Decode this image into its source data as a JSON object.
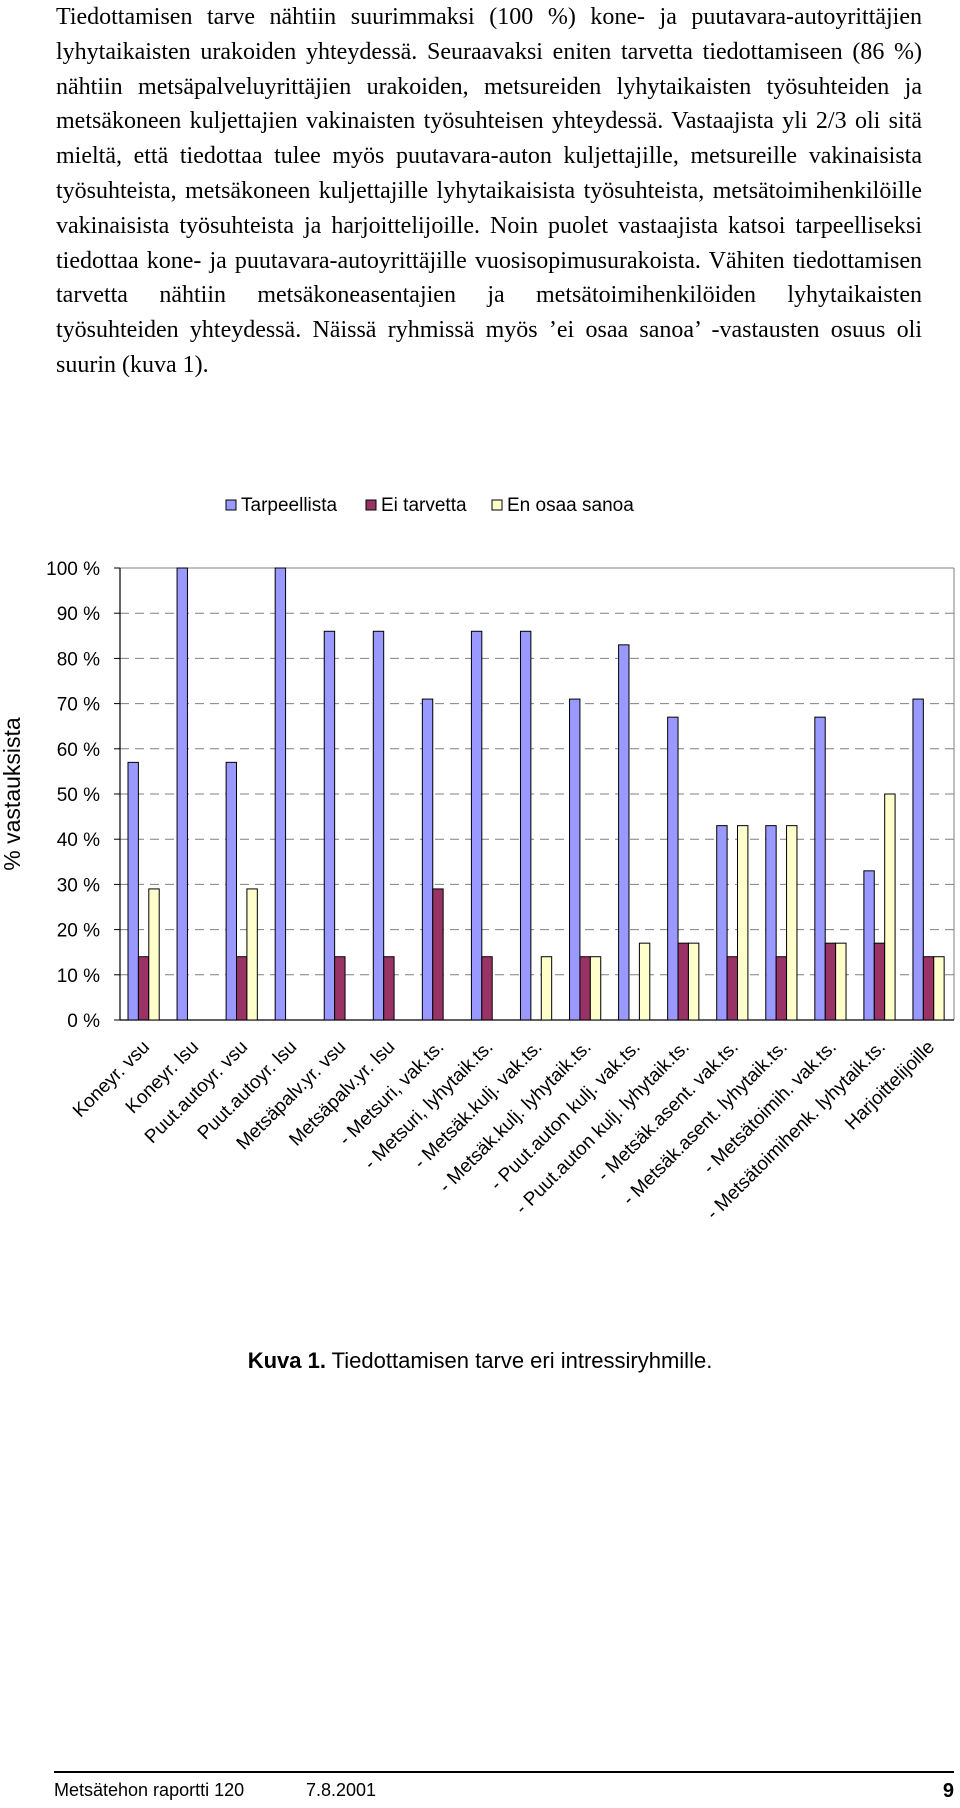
{
  "body_text": "Tiedottamisen tarve nähtiin suurimmaksi (100 %) kone- ja puutavara-autoyrittäjien lyhytaikaisten urakoiden yhteydessä. Seuraavaksi eniten tarvetta tiedottamiseen (86 %) nähtiin metsäpalveluyrittäjien urakoiden, metsureiden lyhytaikaisten työsuhteiden ja metsäkoneen kuljettajien vakinaisten työsuhteisen yhteydessä. Vastaajista yli 2/3 oli sitä mieltä, että tiedottaa tulee myös puutavara-auton kuljettajille, metsureille vakinaisista työsuhteista, metsäkoneen kuljettajille lyhytaikaisista työsuhteista, metsätoimihenkilöille vakinaisista työsuhteista ja harjoittelijoille. Noin puolet vastaajista katsoi tarpeelliseksi tiedottaa kone- ja puutavara-autoyrittäjille vuosisopimusurakoista. Vähiten tiedottamisen tarvetta nähtiin metsäkoneasentajien ja metsätoimihenkilöiden lyhytaikaisten työsuhteiden yhteydessä. Näissä ryhmissä myös ’ei osaa sanoa’ -vastausten osuus oli suurin (kuva 1).",
  "chart_data": {
    "type": "bar",
    "ylabel": "% vastauksista",
    "ylim": [
      0,
      100
    ],
    "yticks": [
      "0 %",
      "10 %",
      "20 %",
      "30 %",
      "40 %",
      "50 %",
      "60 %",
      "70 %",
      "80 %",
      "90 %",
      "100 %"
    ],
    "grid": true,
    "legend_position": "top",
    "categories": [
      "Koneyr. vsu",
      "Koneyr. lsu",
      "Puut.autoyr. vsu",
      "Puut.autoyr. lsu",
      "Metsäpalv.yr. vsu",
      "Metsäpalv.yr. lsu",
      "- Metsuri, vak.ts.",
      "- Metsuri, lyhytaik.ts.",
      "- Metsäk.kulj. vak.ts.",
      "- Metsäk.kulj. lyhytaik.ts.",
      "- Puut.auton kulj. vak.ts.",
      "- Puut.auton kulj. lyhytaik.ts.",
      "- Metsäk.asent. vak.ts.",
      "- Metsäk.asent. lyhytaik.ts.",
      "- Metsätoimih. vak.ts.",
      "- Metsätoimihenk. lyhytaik.ts.",
      "Harjoittelijoille"
    ],
    "series": [
      {
        "name": "Tarpeellista",
        "color": "#9999ff",
        "values": [
          57,
          100,
          57,
          100,
          86,
          86,
          71,
          86,
          86,
          71,
          83,
          67,
          43,
          43,
          67,
          33,
          71
        ]
      },
      {
        "name": "Ei tarvetta",
        "color": "#993366",
        "values": [
          14,
          0,
          14,
          0,
          14,
          14,
          29,
          14,
          0,
          14,
          0,
          17,
          14,
          14,
          17,
          17,
          14
        ]
      },
      {
        "name": "En osaa sanoa",
        "color": "#ffffcc",
        "values": [
          29,
          0,
          29,
          0,
          0,
          0,
          0,
          0,
          14,
          14,
          17,
          17,
          43,
          43,
          17,
          50,
          14
        ]
      }
    ]
  },
  "caption": {
    "label": "Kuva 1.",
    "text": " Tiedottamisen tarve eri intressiryhmille."
  },
  "footer": {
    "publication": "Metsätehon raportti  120",
    "date": "7.8.2001",
    "page_number": "9"
  }
}
